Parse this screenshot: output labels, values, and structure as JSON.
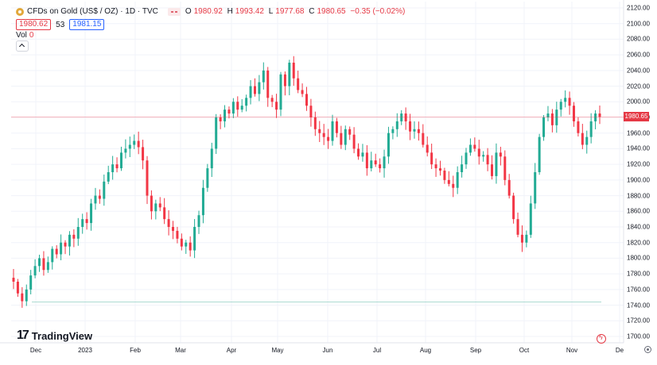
{
  "legend": {
    "symbol_icon": "gold-coin-icon",
    "title": "CFDs on Gold (US$ / OZ) · 1D · TVC",
    "ohlc": {
      "o_label": "O",
      "o_value": "1980.92",
      "h_label": "H",
      "h_value": "1993.42",
      "l_label": "L",
      "l_value": "1977.68",
      "c_label": "C",
      "c_value": "1980.65",
      "change": "−0.35 (−0.02%)"
    },
    "bid": "1980.62",
    "spread": "53",
    "ask": "1981.15",
    "volume_label": "Vol",
    "volume_value": "0"
  },
  "logo": {
    "mark": "17",
    "name": "TradingView"
  },
  "price_axis": {
    "ticks": [
      "2120.00",
      "2100.00",
      "2080.00",
      "2060.00",
      "2040.00",
      "2020.00",
      "2000.00",
      "1980.00",
      "1960.00",
      "1940.00",
      "1920.00",
      "1900.00",
      "1880.00",
      "1860.00",
      "1840.00",
      "1820.00",
      "1800.00",
      "1780.00",
      "1760.00",
      "1740.00",
      "1720.00",
      "1700.00"
    ],
    "current_label": "1980.65"
  },
  "time_axis": {
    "ticks": [
      "Dec",
      "2023",
      "Feb",
      "Mar",
      "Apr",
      "May",
      "Jun",
      "Jul",
      "Aug",
      "Sep",
      "Oct",
      "Nov",
      "De"
    ]
  },
  "colors": {
    "up": "#22ab94",
    "down": "#f23645",
    "price_line": "#f23645",
    "grid": "#f0f3fa"
  },
  "chart_data": {
    "type": "candlestick",
    "x_labels": [
      "Dec",
      "2023",
      "Feb",
      "Mar",
      "Apr",
      "May",
      "Jun",
      "Jul",
      "Aug",
      "Sep",
      "Oct",
      "Nov"
    ],
    "ylim": [
      1700,
      2120
    ],
    "current_price": 1980.65,
    "closes": [
      1770,
      1755,
      1745,
      1760,
      1778,
      1790,
      1800,
      1785,
      1795,
      1812,
      1805,
      1820,
      1815,
      1830,
      1825,
      1840,
      1850,
      1845,
      1870,
      1880,
      1876,
      1898,
      1910,
      1920,
      1915,
      1935,
      1940,
      1945,
      1950,
      1942,
      1925,
      1880,
      1860,
      1870,
      1865,
      1850,
      1840,
      1835,
      1825,
      1815,
      1820,
      1810,
      1840,
      1855,
      1890,
      1915,
      1940,
      1980,
      1975,
      1990,
      1985,
      2000,
      1990,
      1995,
      2005,
      2020,
      2010,
      2025,
      2040,
      2005,
      2000,
      1990,
      2035,
      2020,
      2050,
      2030,
      2015,
      2010,
      1995,
      1980,
      1965,
      1960,
      1955,
      1950,
      1975,
      1960,
      1945,
      1965,
      1958,
      1940,
      1930,
      1935,
      1915,
      1925,
      1920,
      1915,
      1930,
      1960,
      1965,
      1975,
      1985,
      1975,
      1962,
      1965,
      1960,
      1945,
      1935,
      1920,
      1915,
      1912,
      1900,
      1895,
      1890,
      1910,
      1920,
      1935,
      1945,
      1940,
      1930,
      1932,
      1920,
      1905,
      1935,
      1930,
      1900,
      1880,
      1850,
      1830,
      1820,
      1830,
      1870,
      1910,
      1955,
      1980,
      1985,
      1970,
      1990,
      2000,
      2005,
      1995,
      1975,
      1960,
      1945,
      1955,
      1975,
      1985,
      1980.65
    ]
  }
}
